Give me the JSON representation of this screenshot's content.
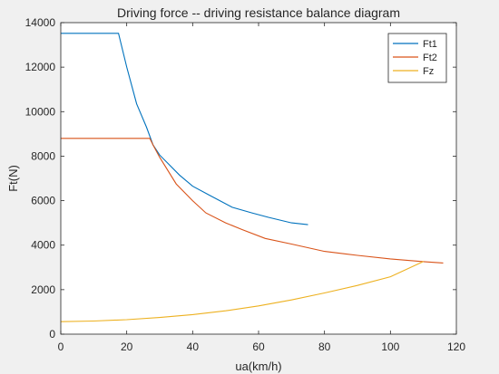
{
  "chart_data": {
    "type": "line",
    "title": "Driving force -- driving resistance balance diagram",
    "xlabel": "ua(km/h)",
    "ylabel": "Ft(N)",
    "xlim": [
      0,
      120
    ],
    "ylim": [
      0,
      14000
    ],
    "xticks": [
      0,
      20,
      40,
      60,
      80,
      100,
      120
    ],
    "yticks": [
      0,
      2000,
      4000,
      6000,
      8000,
      10000,
      12000,
      14000
    ],
    "grid": false,
    "legend_position": "top-right",
    "series": [
      {
        "name": "Ft1",
        "color": "#0072bd",
        "x": [
          0,
          17.5,
          20,
          23,
          26,
          28,
          30,
          33,
          36,
          40,
          45,
          52,
          58,
          63,
          70,
          75
        ],
        "y": [
          13520,
          13520,
          12000,
          10350,
          9300,
          8500,
          8050,
          7600,
          7150,
          6650,
          6250,
          5700,
          5450,
          5250,
          5000,
          4920
        ]
      },
      {
        "name": "Ft2",
        "color": "#d95319",
        "x": [
          0,
          27,
          28,
          30,
          35,
          40,
          44,
          50,
          55,
          62,
          70,
          80,
          90,
          100,
          110,
          116
        ],
        "y": [
          8800,
          8800,
          8500,
          7950,
          6750,
          6000,
          5450,
          5000,
          4700,
          4300,
          4050,
          3720,
          3540,
          3380,
          3260,
          3200
        ]
      },
      {
        "name": "Fz",
        "color": "#edb120",
        "x": [
          0,
          10,
          20,
          30,
          40,
          50,
          60,
          70,
          80,
          90,
          100,
          110
        ],
        "y": [
          560,
          590,
          650,
          750,
          880,
          1050,
          1270,
          1540,
          1850,
          2190,
          2580,
          3270
        ]
      }
    ]
  }
}
